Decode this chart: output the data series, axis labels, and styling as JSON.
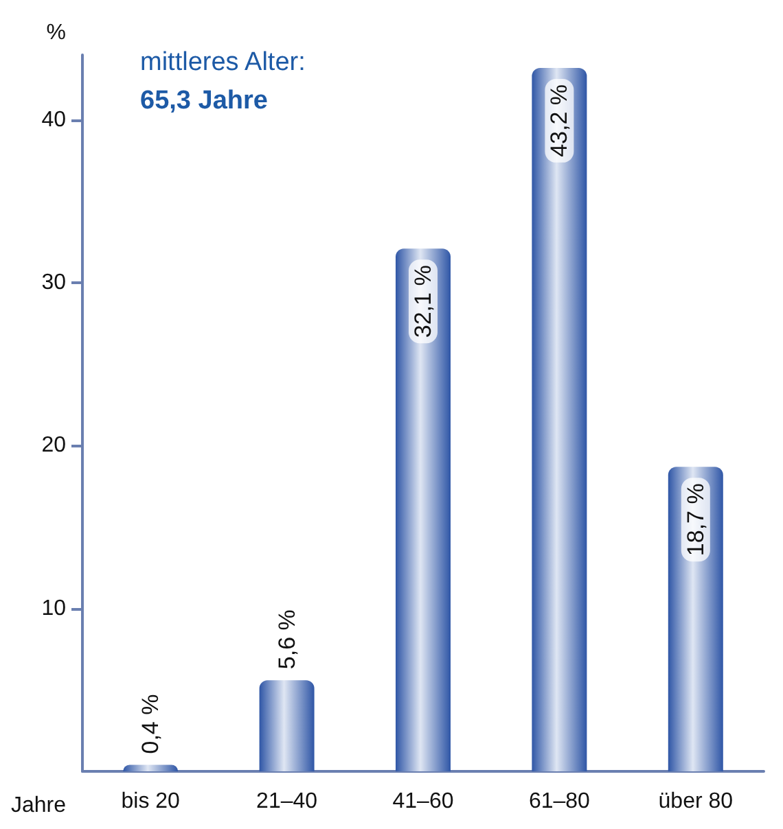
{
  "chart_data": {
    "type": "bar",
    "ylabel": "%",
    "xlabel": "Jahre",
    "categories": [
      "bis 20",
      "21–40",
      "41–60",
      "61–80",
      "über 80"
    ],
    "values": [
      0.4,
      5.6,
      32.1,
      43.2,
      18.7
    ],
    "value_labels": [
      "0,4 %",
      "5,6 %",
      "32,1 %",
      "43,2 %",
      "18,7 %"
    ],
    "color": "#2f56a6",
    "ylim": [
      0,
      44
    ],
    "yticks": [
      10,
      20,
      30,
      40
    ],
    "grid": false,
    "annotations": [
      "mittleres Alter:",
      "65,3 Jahre"
    ]
  }
}
